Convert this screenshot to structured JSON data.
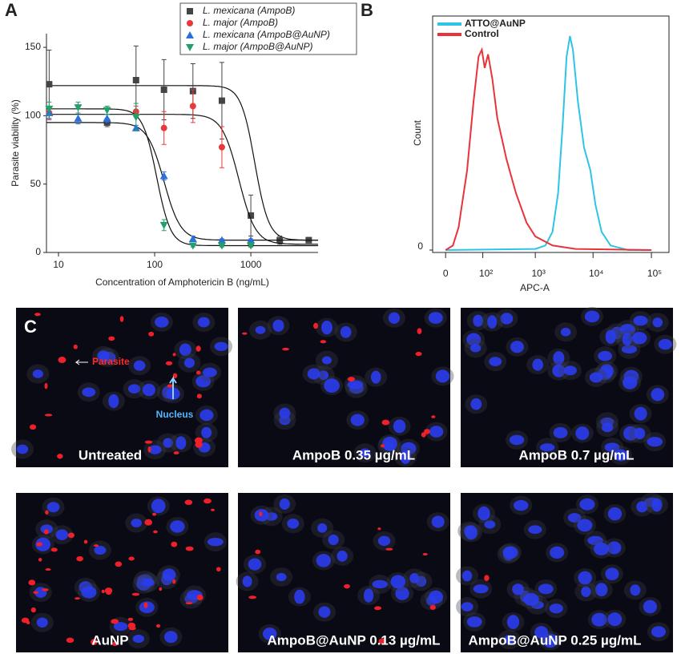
{
  "chart_data": [
    {
      "type": "scatter",
      "panel": "A",
      "xlabel": "Concentration of Amphotericin B (ng/mL)",
      "ylabel": "Parasite viability (%)",
      "xscale": "log",
      "xlim": [
        7.5,
        5000
      ],
      "ylim": [
        0,
        160
      ],
      "xticks": [
        10,
        100,
        1000
      ],
      "yticks": [
        0,
        50,
        100,
        150
      ],
      "series": [
        {
          "name": "L. mexicana (AmpoB)",
          "color": "#444444",
          "marker": "square",
          "x": [
            8,
            32,
            64,
            125,
            250,
            500,
            1000,
            2000,
            4000
          ],
          "values": [
            123,
            95,
            126,
            119,
            118,
            111,
            27,
            9,
            9
          ],
          "errors": [
            25,
            3,
            25,
            22,
            20,
            28,
            15,
            3,
            2
          ],
          "curve": {
            "top": 122,
            "bottom": 9,
            "ec50": 1100,
            "slope": 6
          }
        },
        {
          "name": "L. major (AmpoB)",
          "color": "#e83a3a",
          "marker": "circle",
          "x": [
            8,
            64,
            125,
            250,
            500,
            1000
          ],
          "values": [
            102,
            103,
            91,
            107,
            77,
            6
          ],
          "errors": [
            5,
            4,
            12,
            12,
            15,
            2
          ],
          "curve": {
            "top": 101,
            "bottom": 6,
            "ec50": 750,
            "slope": 5
          }
        },
        {
          "name": "L. mexicana (AmpoB@AuNP)",
          "color": "#2a6fdb",
          "marker": "triangle-up",
          "x": [
            8,
            16,
            32,
            64,
            125,
            250,
            500,
            1000
          ],
          "values": [
            102,
            98,
            98,
            91,
            56,
            10,
            9,
            9
          ],
          "errors": [
            4,
            4,
            3,
            2,
            3,
            2,
            1,
            1
          ],
          "curve": {
            "top": 95,
            "bottom": 9,
            "ec50": 125,
            "slope": 5
          }
        },
        {
          "name": "L. major (AmpoB@AuNP)",
          "color": "#22a06b",
          "marker": "triangle-down",
          "x": [
            8,
            16,
            32,
            64,
            125,
            250,
            500,
            1000
          ],
          "values": [
            105,
            106,
            104,
            99,
            20,
            5,
            5,
            5
          ],
          "errors": [
            5,
            4,
            3,
            10,
            4,
            1,
            1,
            1
          ],
          "curve": {
            "top": 105,
            "bottom": 5,
            "ec50": 105,
            "slope": 6
          }
        }
      ]
    },
    {
      "type": "line",
      "panel": "B",
      "xlabel": "APC-A",
      "ylabel": "Count",
      "xscale": "symlog",
      "linthresh": 30,
      "xlim": [
        -20,
        200000
      ],
      "ylim": [
        0,
        100
      ],
      "yticks": [
        0
      ],
      "xticks": [
        0,
        {
          "value": 100,
          "label": "10²"
        },
        {
          "value": 1000,
          "label": "10³"
        },
        {
          "value": 10000,
          "label": "10⁴"
        },
        {
          "value": 100000,
          "label": "10⁵"
        }
      ],
      "series": [
        {
          "name": "ATTO@AuNP",
          "color": "#2ec4e6",
          "x": [
            0,
            1000,
            1500,
            2000,
            2500,
            3000,
            3500,
            4000,
            4500,
            5500,
            7000,
            9000,
            11000,
            14000,
            20000,
            40000,
            100000
          ],
          "values": [
            0,
            0.5,
            2,
            8,
            25,
            55,
            85,
            94,
            88,
            65,
            45,
            35,
            20,
            8,
            2,
            0,
            0
          ]
        },
        {
          "name": "Control",
          "color": "#e8333a",
          "x": [
            0,
            10,
            20,
            40,
            60,
            80,
            95,
            110,
            130,
            160,
            200,
            300,
            450,
            700,
            1000,
            2000,
            5000,
            100000
          ],
          "values": [
            0,
            2,
            10,
            35,
            65,
            85,
            88,
            80,
            86,
            75,
            58,
            40,
            25,
            12,
            6,
            2,
            0.5,
            0
          ]
        }
      ]
    }
  ],
  "micrographs": {
    "label": "C",
    "annotations": {
      "parasite": "Parasite",
      "nucleus": "Nucleus"
    },
    "panels": [
      {
        "caption": "Untreated"
      },
      {
        "caption": "AmpoB 0.35 µg/mL"
      },
      {
        "caption": "AmpoB 0.7 µg/mL"
      },
      {
        "caption": "AuNP"
      },
      {
        "caption": "AmpoB@AuNP 0.13 µg/mL"
      },
      {
        "caption": "AmpoB@AuNP 0.25 µg/mL"
      }
    ]
  }
}
